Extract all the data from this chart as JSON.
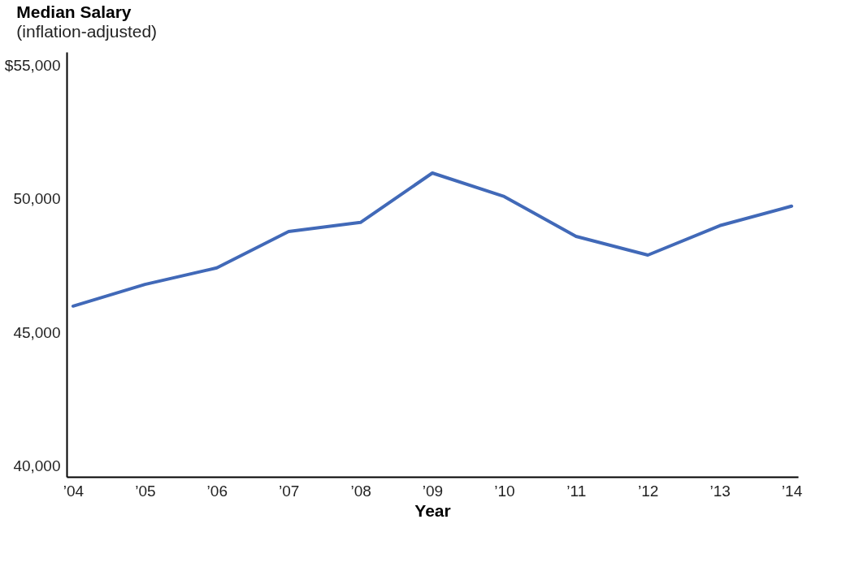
{
  "chart_data": {
    "type": "line",
    "title": "Median Salary",
    "subtitle": "(inflation-adjusted)",
    "xlabel": "Year",
    "categories": [
      "’04",
      "’05",
      "’06",
      "’07",
      "’08",
      "’09",
      "’10",
      "’11",
      "’12",
      "’13",
      "’14"
    ],
    "series": [
      {
        "color": "#4169b8",
        "values": [
          45990,
          46800,
          47420,
          48780,
          49120,
          50970,
          50090,
          48600,
          47900,
          49000,
          49730
        ]
      }
    ],
    "ylim": [
      39600,
      55500
    ],
    "yticks": [
      {
        "value": 40000,
        "label": "40,000"
      },
      {
        "value": 45000,
        "label": "45,000"
      },
      {
        "value": 50000,
        "label": "50,000"
      },
      {
        "value": 55000,
        "label": "$55,000"
      }
    ],
    "grid": false,
    "legend": false,
    "marker": "none",
    "line_style": "solid"
  }
}
